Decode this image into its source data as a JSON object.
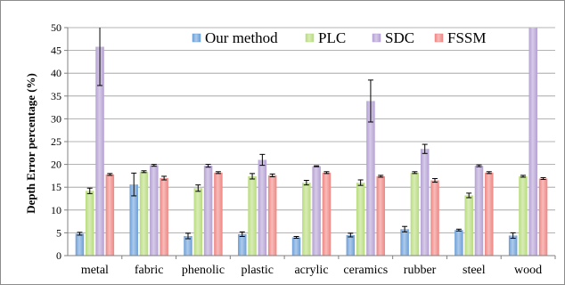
{
  "chart_data": {
    "type": "bar",
    "title": "",
    "xlabel": "",
    "ylabel": "Depth Error percentage (%)",
    "ylim": [
      0,
      50
    ],
    "yticks": [
      0,
      5,
      10,
      15,
      20,
      25,
      30,
      35,
      40,
      45,
      50
    ],
    "grid": "horizontal",
    "legend_position": "top-right",
    "categories": [
      "metal",
      "fabric",
      "phenolic",
      "plastic",
      "acrylic",
      "ceramics",
      "rubber",
      "steel",
      "wood"
    ],
    "series": [
      {
        "name": "Our method",
        "color": "#6b9fd8",
        "values": [
          4.8,
          15.6,
          4.3,
          4.7,
          4.0,
          4.5,
          5.8,
          5.6,
          4.4
        ],
        "errors": [
          0.3,
          2.5,
          0.6,
          0.5,
          0.2,
          0.4,
          0.6,
          0.2,
          0.6
        ]
      },
      {
        "name": "PLC",
        "color": "#b8dc7c",
        "values": [
          14.2,
          18.4,
          14.8,
          17.4,
          16.0,
          16.0,
          18.2,
          13.2,
          17.4
        ],
        "errors": [
          0.6,
          0.2,
          0.7,
          0.6,
          0.5,
          0.6,
          0.2,
          0.5,
          0.2
        ]
      },
      {
        "name": "SDC",
        "color": "#b4a0d4",
        "values": [
          45.8,
          19.8,
          19.7,
          21.0,
          19.6,
          33.9,
          23.4,
          19.7,
          50.0
        ],
        "errors": [
          8.5,
          0.2,
          0.3,
          1.2,
          0.1,
          4.6,
          1.0,
          0.2,
          0
        ]
      },
      {
        "name": "FSSM",
        "color": "#ef8582",
        "values": [
          17.8,
          17.0,
          18.2,
          17.6,
          18.2,
          17.4,
          16.5,
          18.2,
          16.9
        ],
        "errors": [
          0.2,
          0.4,
          0.2,
          0.3,
          0.2,
          0.2,
          0.4,
          0.2,
          0.2
        ]
      }
    ]
  }
}
